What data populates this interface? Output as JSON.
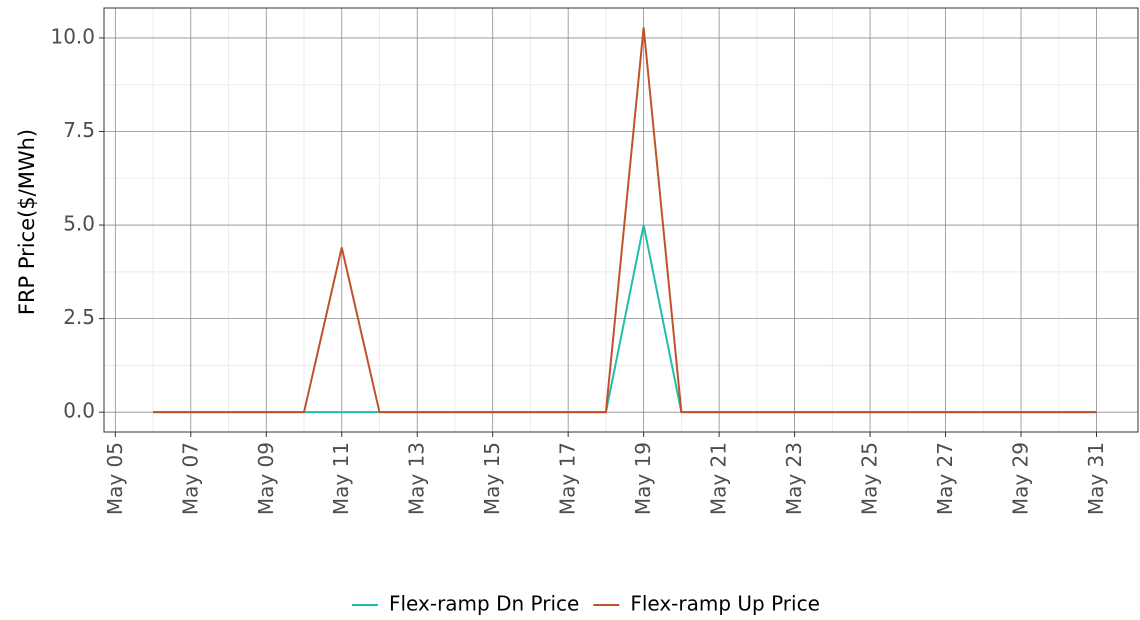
{
  "chart_data": {
    "type": "line",
    "y_label": "FRP Price($/MWh)",
    "x": [
      6,
      7,
      8,
      9,
      10,
      11,
      12,
      13,
      14,
      15,
      16,
      17,
      18,
      19,
      20,
      21,
      22,
      23,
      24,
      25,
      26,
      27,
      28,
      29,
      30,
      31
    ],
    "series": [
      {
        "name": "Flex-ramp Dn Price",
        "color": "#1fbfa9",
        "values": [
          0,
          0,
          0,
          0,
          0,
          0,
          0,
          0,
          0,
          0,
          0,
          0,
          0,
          5.0,
          0,
          0,
          0,
          0,
          0,
          0,
          0,
          0,
          0,
          0,
          0,
          0
        ]
      },
      {
        "name": "Flex-ramp Up Price",
        "color": "#c0522a",
        "values": [
          0,
          0,
          0,
          0,
          0,
          4.4,
          0,
          0,
          0,
          0,
          0,
          0,
          0,
          10.28,
          0,
          0,
          0,
          0,
          0,
          0,
          0,
          0,
          0,
          0,
          0,
          0
        ]
      }
    ],
    "xlim": [
      4.7,
      32.1
    ],
    "xticks": [
      {
        "value": 5,
        "label": "May 05"
      },
      {
        "value": 7,
        "label": "May 07"
      },
      {
        "value": 9,
        "label": "May 09"
      },
      {
        "value": 11,
        "label": "May 11"
      },
      {
        "value": 13,
        "label": "May 13"
      },
      {
        "value": 15,
        "label": "May 15"
      },
      {
        "value": 17,
        "label": "May 17"
      },
      {
        "value": 19,
        "label": "May 19"
      },
      {
        "value": 21,
        "label": "May 21"
      },
      {
        "value": 23,
        "label": "May 23"
      },
      {
        "value": 25,
        "label": "May 25"
      },
      {
        "value": 27,
        "label": "May 27"
      },
      {
        "value": 29,
        "label": "May 29"
      },
      {
        "value": 31,
        "label": "May 31"
      }
    ],
    "ylim": [
      -0.53,
      10.8
    ],
    "yticks": [
      {
        "value": 0,
        "label": "0.0"
      },
      2.5,
      {
        "value": 5,
        "label": "5.0"
      },
      7.5,
      {
        "value": 10,
        "label": "10.0"
      }
    ],
    "grid": true,
    "legend": "bottom"
  }
}
